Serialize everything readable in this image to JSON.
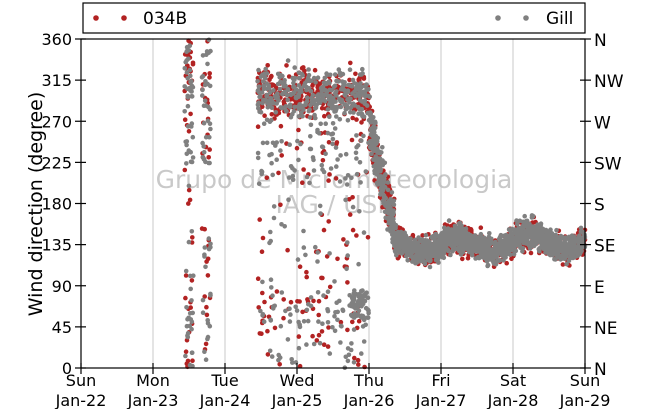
{
  "chart_data": {
    "type": "scatter",
    "title": "",
    "xlabel": "",
    "ylabel": "Wind direction (degree)",
    "ylim": [
      0,
      360
    ],
    "y_ticks": [
      0,
      45,
      90,
      135,
      180,
      225,
      270,
      315,
      360
    ],
    "y2_tick_labels": [
      "N",
      "NE",
      "E",
      "SE",
      "S",
      "SW",
      "W",
      "NW",
      "N"
    ],
    "xlim_days": [
      0,
      7
    ],
    "x_ticks": [
      {
        "day": 0,
        "weekday": "Sun",
        "date": "Jan-22"
      },
      {
        "day": 1,
        "weekday": "Mon",
        "date": "Jan-23"
      },
      {
        "day": 2,
        "weekday": "Tue",
        "date": "Jan-24"
      },
      {
        "day": 3,
        "weekday": "Wed",
        "date": "Jan-25"
      },
      {
        "day": 4,
        "weekday": "Thu",
        "date": "Jan-26"
      },
      {
        "day": 5,
        "weekday": "Fri",
        "date": "Jan-27"
      },
      {
        "day": 6,
        "weekday": "Sat",
        "date": "Jan-28"
      },
      {
        "day": 7,
        "weekday": "Sun",
        "date": "Jan-29"
      }
    ],
    "grid": "vertical",
    "legend_position": "top",
    "series": [
      {
        "name": "034B",
        "color": "#b22222",
        "marker": "dot"
      },
      {
        "name": "Gill",
        "color": "#808080",
        "marker": "dot"
      }
    ],
    "segments_description": [
      {
        "from": 1.45,
        "to": 1.55,
        "values": "mostly 240-360 and 0-180 scattered"
      },
      {
        "from": 1.7,
        "to": 1.8,
        "values": "210-310 and 0-180 scattered"
      },
      {
        "from": 2.45,
        "to": 4.0,
        "values": "mostly 260-360 with scattered 0-260"
      },
      {
        "from": 4.0,
        "to": 4.35,
        "values": "decreasing from ~270 to ~150"
      },
      {
        "from": 4.35,
        "to": 7.0,
        "values": "mostly 110-170, centered near 135"
      }
    ],
    "watermark": [
      "Grupo de Micrometeorologia",
      "IAG / USP"
    ]
  },
  "legend": {
    "series_034b": "034B",
    "series_gill": "Gill"
  },
  "colors": {
    "series_034b": "#b22222",
    "series_gill": "#808080",
    "grid": "#c8c8c8",
    "watermark": "#b8b8b8"
  }
}
